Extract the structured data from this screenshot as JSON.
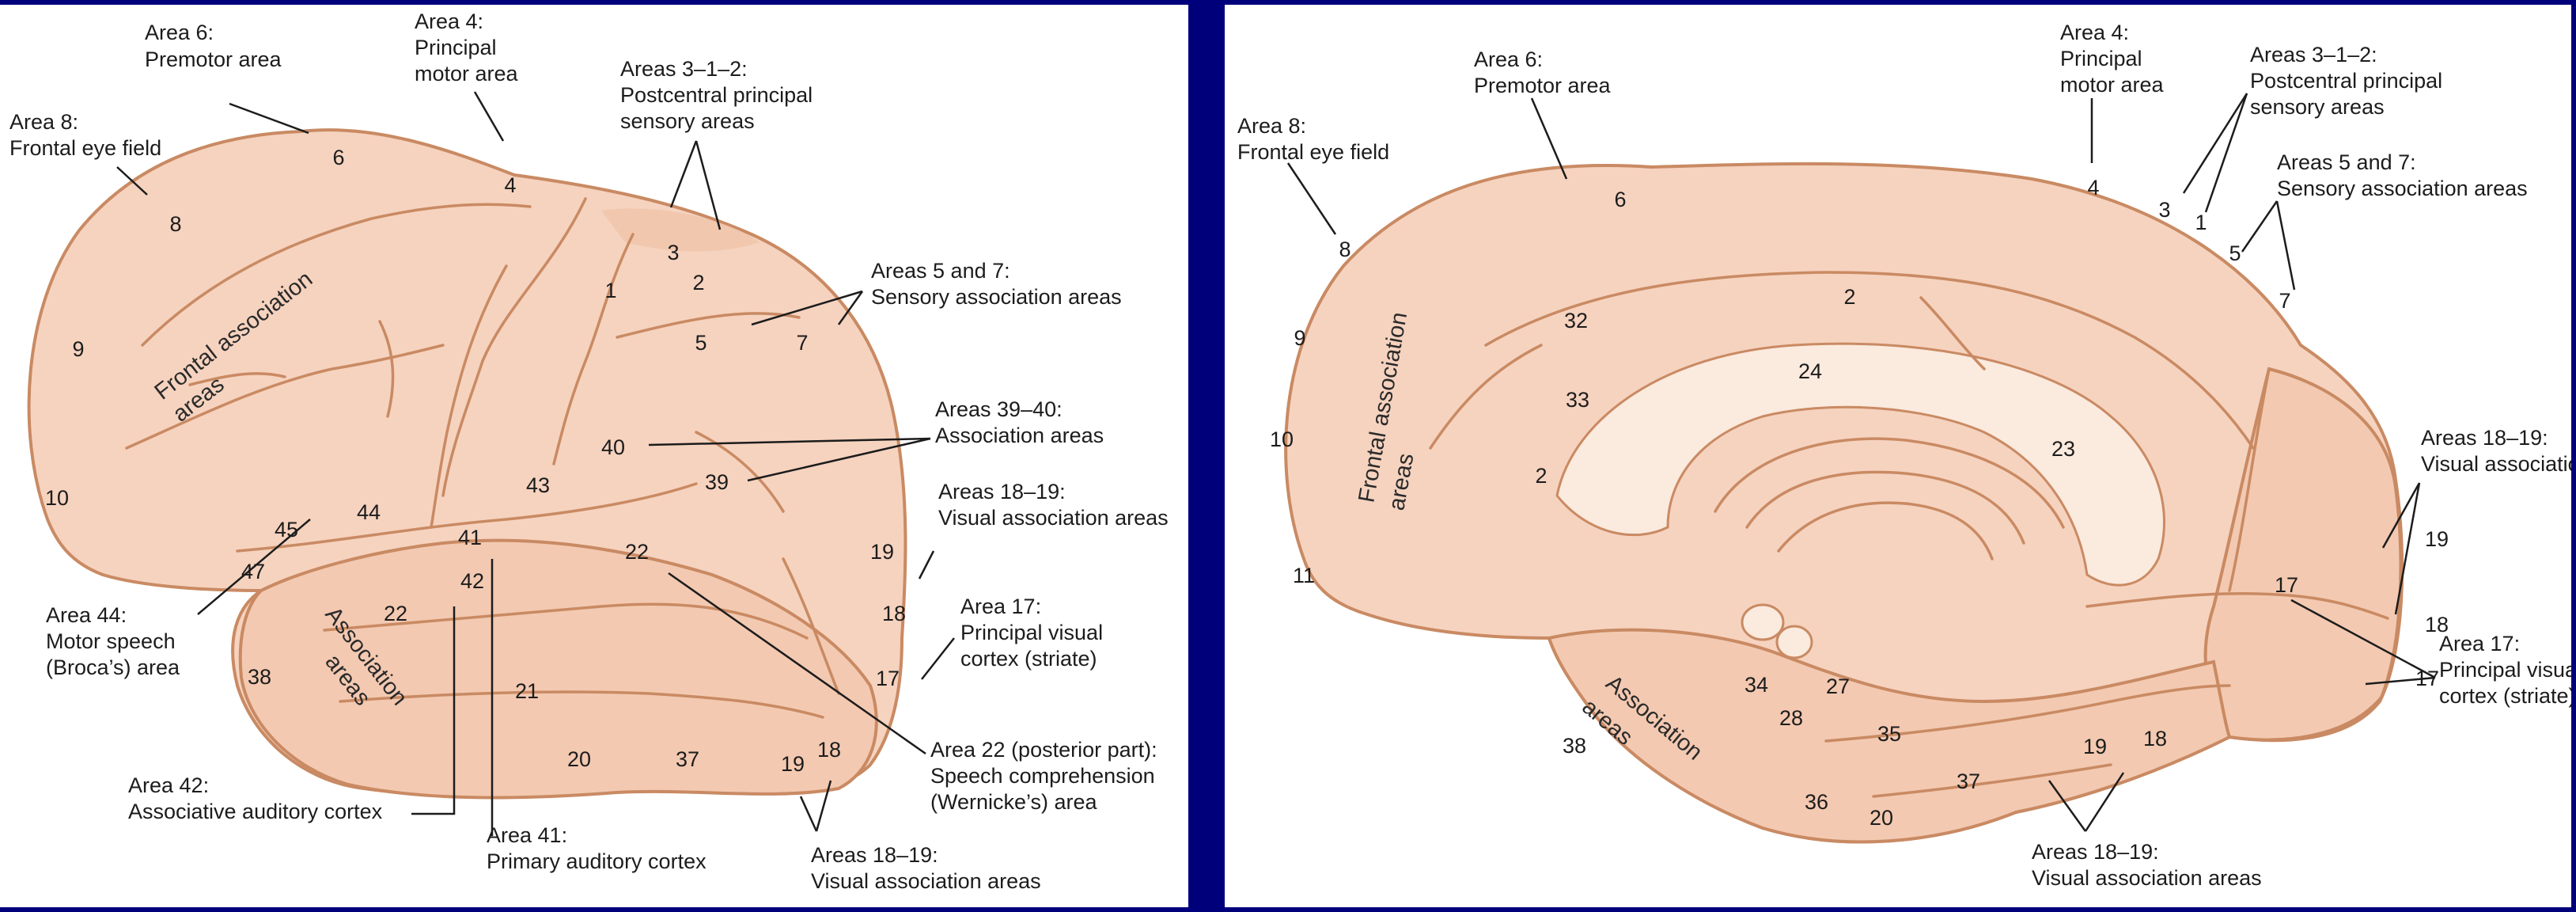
{
  "left": {
    "labels": {
      "a6_title": "Area 6:",
      "a6_name": "Premotor area",
      "a4_title": "Area 4:",
      "a4_l1": "Principal",
      "a4_l2": "motor area",
      "a312_title": "Areas 3–1–2:",
      "a312_l1": "Postcentral principal",
      "a312_l2": "sensory areas",
      "a8_title": "Area 8:",
      "a8_name": "Frontal eye field",
      "a57_title": "Areas 5 and 7:",
      "a57_name": "Sensory association areas",
      "a3940_title": "Areas 39–40:",
      "a3940_name": "Association areas",
      "a1819_title": "Areas 18–19:",
      "a1819_name": "Visual association areas",
      "a17_title": "Area 17:",
      "a17_l1": "Principal visual",
      "a17_l2": "cortex (striate)",
      "a44_title": "Area 44:",
      "a44_l1": "Motor speech",
      "a44_l2": "(Broca’s) area",
      "a22_title": "Area 22 (posterior part):",
      "a22_l1": "Speech comprehension",
      "a22_l2": "(Wernicke’s) area",
      "a42_title": "Area 42:",
      "a42_name": "Associative auditory cortex",
      "a41_title": "Area 41:",
      "a41_name": "Primary auditory cortex",
      "a1819b_title": "Areas 18–19:",
      "a1819b_name": "Visual association areas",
      "frontal_l1": "Frontal association",
      "frontal_l2": "areas",
      "assoc_l1": "Association",
      "assoc_l2": "areas"
    },
    "numbers": [
      "6",
      "4",
      "8",
      "3",
      "1",
      "2",
      "5",
      "7",
      "9",
      "40",
      "39",
      "43",
      "10",
      "44",
      "45",
      "41",
      "42",
      "22",
      "47",
      "22",
      "38",
      "21",
      "19",
      "18",
      "17",
      "20",
      "37",
      "19",
      "18"
    ]
  },
  "right": {
    "labels": {
      "a4_title": "Area 4:",
      "a4_l1": "Principal",
      "a4_l2": "motor area",
      "a6_title": "Area 6:",
      "a6_name": "Premotor area",
      "a312_title": "Areas 3–1–2:",
      "a312_l1": "Postcentral principal",
      "a312_l2": "sensory areas",
      "a8_title": "Area 8:",
      "a8_name": "Frontal eye field",
      "a57_title": "Areas 5 and 7:",
      "a57_name": "Sensory association areas",
      "a1819_title": "Areas 18–19:",
      "a1819_name": "Visual association areas",
      "a17_title": "Area 17:",
      "a17_l1": "Principal visual",
      "a17_l2": "cortex (striate)",
      "a1819b_title": "Areas 18–19:",
      "a1819b_name": "Visual association areas",
      "frontal_l1": "Frontal association",
      "frontal_l2": "areas",
      "assoc_l1": "Association",
      "assoc_l2": "areas"
    },
    "numbers": [
      "6",
      "4",
      "3",
      "1",
      "5",
      "7",
      "8",
      "2",
      "32",
      "9",
      "24",
      "33",
      "10",
      "2",
      "23",
      "19",
      "11",
      "17",
      "18",
      "17",
      "34",
      "27",
      "28",
      "35",
      "38",
      "19",
      "18",
      "37",
      "36",
      "20"
    ]
  }
}
